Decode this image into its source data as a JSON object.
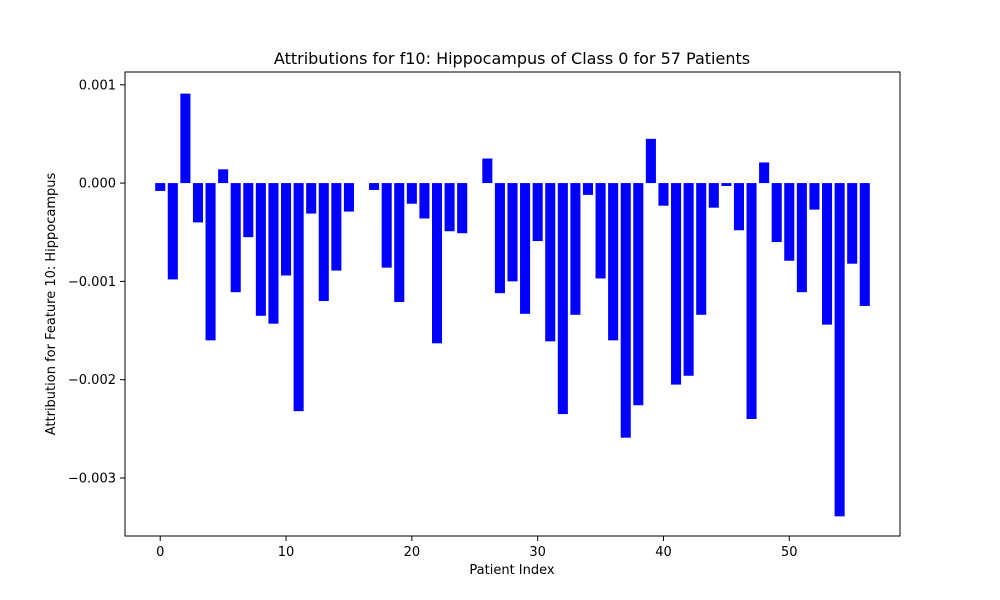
{
  "chart_data": {
    "type": "bar",
    "title": "Attributions for f10: Hippocampus of Class 0 for 57 Patients",
    "xlabel": "Patient Index",
    "ylabel": "Attribution for Feature 10: Hippocampus",
    "xlim": [
      -2.8,
      58.8
    ],
    "ylim": [
      -0.00359,
      0.00113
    ],
    "x_ticks": [
      0,
      10,
      20,
      30,
      40,
      50
    ],
    "x_tick_labels": [
      "0",
      "10",
      "20",
      "30",
      "40",
      "50"
    ],
    "y_ticks": [
      0.001,
      0.0,
      -0.001,
      -0.002,
      -0.003
    ],
    "y_tick_labels": [
      "0.001",
      "0.000",
      "−0.001",
      "−0.002",
      "−0.003"
    ],
    "grid": false,
    "bar_color": "#0000ff",
    "x": [
      0,
      1,
      2,
      3,
      4,
      5,
      6,
      7,
      8,
      9,
      10,
      11,
      12,
      13,
      14,
      15,
      16,
      17,
      18,
      19,
      20,
      21,
      22,
      23,
      24,
      25,
      26,
      27,
      28,
      29,
      30,
      31,
      32,
      33,
      34,
      35,
      36,
      37,
      38,
      39,
      40,
      41,
      42,
      43,
      44,
      45,
      46,
      47,
      48,
      49,
      50,
      51,
      52,
      53,
      54,
      55,
      56
    ],
    "values": [
      -8e-05,
      -0.00098,
      0.00091,
      -0.0004,
      -0.0016,
      0.00014,
      -0.00111,
      -0.00055,
      -0.00135,
      -0.00143,
      -0.00094,
      -0.00232,
      -0.00031,
      -0.0012,
      -0.00089,
      -0.00029,
      0.0,
      -7e-05,
      -0.00086,
      -0.00121,
      -0.00021,
      -0.00036,
      -0.00163,
      -0.00049,
      -0.00051,
      0.0,
      0.00025,
      -0.00112,
      -0.001,
      -0.00133,
      -0.00059,
      -0.00161,
      -0.00235,
      -0.00134,
      -0.00012,
      -0.00097,
      -0.0016,
      -0.00259,
      -0.00226,
      0.00045,
      -0.00023,
      -0.00205,
      -0.00196,
      -0.00134,
      -0.00025,
      -3e-05,
      -0.00048,
      -0.0024,
      0.00021,
      -0.0006,
      -0.00079,
      -0.00111,
      -0.00027,
      -0.00144,
      -0.00339,
      -0.00082,
      -0.00125
    ]
  }
}
